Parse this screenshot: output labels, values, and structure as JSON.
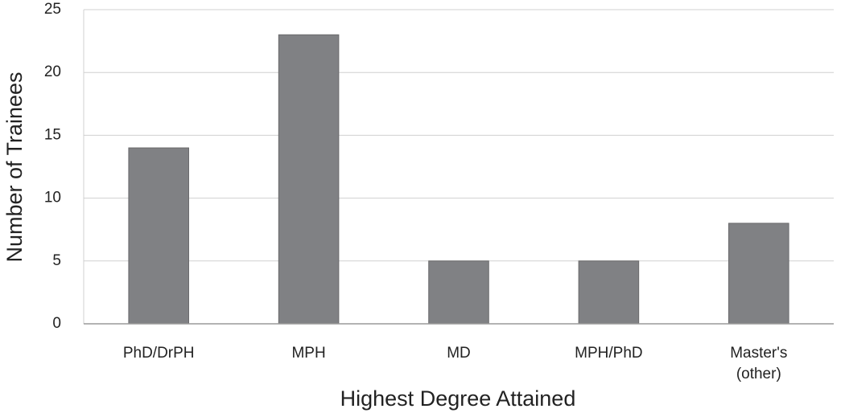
{
  "chart_data": {
    "type": "bar",
    "x_label": "Highest Degree Attained",
    "y_label": "Number of Trainees",
    "categories": [
      "PhD/DrPH",
      "MPH",
      "MD",
      "MPH/PhD",
      "Master's (other)"
    ],
    "values": [
      14,
      23,
      5,
      5,
      8
    ],
    "color": "#808184",
    "ylim": [
      0,
      25
    ],
    "yticks": [
      0,
      5,
      10,
      15,
      20,
      25
    ],
    "grid": true
  }
}
